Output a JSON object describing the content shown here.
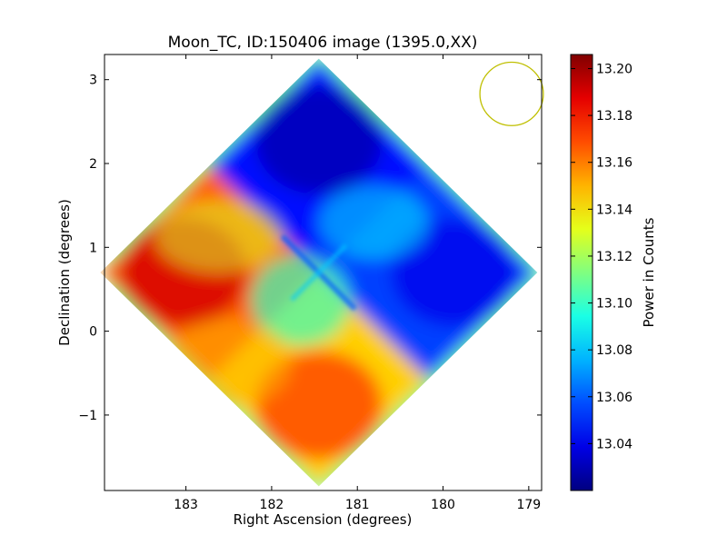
{
  "chart_data": {
    "type": "heatmap",
    "title": "Moon_TC, ID:150406 image (1395.0,XX)",
    "xlabel": "Right Ascension (degrees)",
    "ylabel": "Declination (degrees)",
    "xlim": [
      183.95,
      178.85
    ],
    "ylim": [
      -1.9,
      3.3
    ],
    "x_ticks": [
      183,
      182,
      181,
      180,
      179
    ],
    "x_tick_labels": [
      "183",
      "182",
      "181",
      "180",
      "179"
    ],
    "y_ticks": [
      3,
      2,
      1,
      0,
      -1
    ],
    "y_tick_labels": [
      "3",
      "2",
      "1",
      "0",
      "−1"
    ],
    "colorbar": {
      "label": "Power in Counts",
      "range": [
        13.02,
        13.206
      ],
      "ticks": [
        13.2,
        13.18,
        13.16,
        13.14,
        13.12,
        13.1,
        13.08,
        13.06,
        13.04
      ],
      "tick_labels": [
        "13.20",
        "13.18",
        "13.16",
        "13.14",
        "13.12",
        "13.10",
        "13.08",
        "13.06",
        "13.04"
      ],
      "colormap": "jet"
    },
    "footprint": {
      "shape": "diamond",
      "center": [
        181.45,
        0.7
      ],
      "corners": [
        [
          181.45,
          3.25
        ],
        [
          178.9,
          0.7
        ],
        [
          181.45,
          -1.85
        ],
        [
          184.0,
          0.7
        ]
      ]
    },
    "quadrants": [
      {
        "name": "north",
        "value_range": [
          13.03,
          13.06
        ]
      },
      {
        "name": "east",
        "value_range": [
          13.04,
          13.07
        ]
      },
      {
        "name": "south",
        "value_range": [
          13.12,
          13.17
        ]
      },
      {
        "name": "west",
        "value_range": [
          13.14,
          13.19
        ]
      }
    ],
    "beam": {
      "center": [
        179.2,
        2.83
      ],
      "radius_deg": 0.37,
      "color": "#bfbf00"
    },
    "grid": false
  }
}
